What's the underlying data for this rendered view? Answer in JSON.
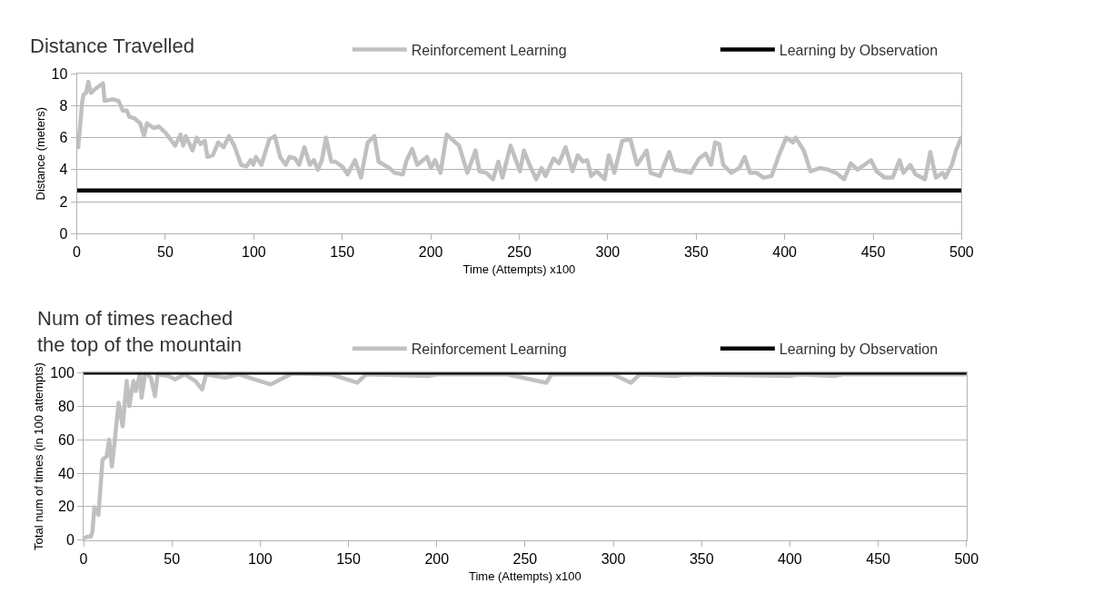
{
  "chart_data": [
    {
      "type": "line",
      "title": "Distance Travelled",
      "xlabel": "Time (Attempts) x100",
      "ylabel": "Distance (meters)",
      "xlim": [
        0,
        500
      ],
      "xticks": [
        0,
        50,
        100,
        150,
        200,
        250,
        300,
        350,
        400,
        450,
        500
      ],
      "ylim": [
        0,
        10
      ],
      "yticks": [
        0,
        2,
        4,
        6,
        8,
        10
      ],
      "grid": "y",
      "legend": "top right",
      "series": [
        {
          "name": "Reinforcement Learning",
          "color": "#c0c0c0",
          "x": [
            0.8,
            3,
            3.8,
            5.3,
            6.5,
            8,
            9.9,
            12.2,
            14.8,
            15.7,
            20.5,
            23.6,
            25.9,
            28.2,
            29.7,
            32.7,
            35.8,
            38,
            39.6,
            43.4,
            46.4,
            50.2,
            55.6,
            58.6,
            60.1,
            61.6,
            65.4,
            67.7,
            69.9,
            72.3,
            73.8,
            76.9,
            79.9,
            82.9,
            86,
            89,
            92.8,
            95.9,
            98.2,
            99.7,
            101.2,
            104.3,
            108.8,
            111.9,
            114.9,
            118,
            120.2,
            123.3,
            125.6,
            128.6,
            131.7,
            134,
            136.2,
            138.5,
            140.8,
            143.8,
            146.1,
            150,
            153,
            157.2,
            160.6,
            162.1,
            164.4,
            168.2,
            170.5,
            176.6,
            179.6,
            184.2,
            186.4,
            189.5,
            192.4,
            197.9,
            200.1,
            202.4,
            205.5,
            209,
            213,
            216,
            220.7,
            225.3,
            227.5,
            231.4,
            235.2,
            238.2,
            240.5,
            245.1,
            250.4,
            252.7,
            255.8,
            259.6,
            262.6,
            264.9,
            269.4,
            272.5,
            276.2,
            280.1,
            283.1,
            286.1,
            288.4,
            290.7,
            293.8,
            298.3,
            300.6,
            303.7,
            308.2,
            312.8,
            316.6,
            322,
            324.2,
            329.5,
            334.8,
            337.9,
            347,
            351.6,
            355.4,
            358.4,
            360.7,
            363,
            365.3,
            369.8,
            374.4,
            377.4,
            380.4,
            384.2,
            388,
            392.6,
            396.4,
            400.9,
            404.7,
            406.2,
            410.8,
            414.6,
            419.9,
            424.5,
            429,
            433.6,
            437.4,
            441.2,
            448.8,
            451.9,
            456.5,
            461,
            464.9,
            467.1,
            471,
            474,
            479.3,
            482.3,
            485.4,
            489.2,
            490.7,
            494.5,
            496.8,
            499.8
          ],
          "values": [
            5.4,
            8.2,
            8.7,
            8.8,
            9.5,
            8.8,
            9.0,
            9.2,
            9.4,
            8.3,
            8.4,
            8.3,
            7.7,
            7.7,
            7.3,
            7.2,
            6.9,
            6.1,
            6.9,
            6.6,
            6.7,
            6.3,
            5.5,
            6.2,
            5.5,
            6.1,
            5.2,
            6.0,
            5.6,
            5.8,
            4.8,
            4.9,
            5.7,
            5.4,
            6.1,
            5.5,
            4.3,
            4.2,
            4.6,
            4.3,
            4.8,
            4.3,
            5.9,
            6.1,
            4.8,
            4.3,
            4.8,
            4.7,
            4.3,
            5.4,
            4.3,
            4.6,
            4.0,
            4.6,
            6.0,
            4.5,
            4.5,
            4.2,
            3.7,
            4.6,
            3.5,
            4.4,
            5.7,
            6.1,
            4.5,
            4.1,
            3.8,
            3.7,
            4.6,
            5.3,
            4.3,
            4.8,
            4.1,
            4.6,
            3.8,
            6.2,
            5.8,
            5.5,
            3.8,
            5.2,
            3.9,
            3.8,
            3.4,
            4.5,
            3.5,
            5.5,
            3.9,
            5.2,
            4.3,
            3.4,
            4.1,
            3.6,
            4.7,
            4.4,
            5.4,
            3.9,
            4.9,
            4.5,
            4.6,
            3.6,
            3.9,
            3.4,
            4.9,
            3.8,
            5.8,
            5.9,
            4.3,
            5.2,
            3.8,
            3.6,
            5.1,
            4.0,
            3.8,
            4.7,
            5.0,
            4.3,
            5.7,
            5.6,
            4.3,
            3.8,
            4.1,
            4.8,
            3.8,
            3.8,
            3.5,
            3.6,
            4.8,
            6.0,
            5.7,
            6.0,
            5.2,
            3.9,
            4.1,
            4.0,
            3.8,
            3.4,
            4.4,
            4.0,
            4.6,
            3.9,
            3.5,
            3.5,
            4.6,
            3.8,
            4.3,
            3.7,
            3.4,
            5.1,
            3.5,
            3.8,
            3.5,
            4.3,
            5.2,
            6.0
          ]
        },
        {
          "name": "Learning by Observation",
          "color": "#000000",
          "x": [
            0,
            500
          ],
          "values": [
            2.7,
            2.7
          ]
        }
      ]
    },
    {
      "type": "line",
      "title": "Num of times reached\nthe top of the mountain",
      "xlabel": "Time (Attempts) x100",
      "ylabel": "Total num of times (in 100 attempts)",
      "xlim": [
        0,
        500
      ],
      "xticks": [
        0,
        50,
        100,
        150,
        200,
        250,
        300,
        350,
        400,
        450,
        500
      ],
      "ylim": [
        0,
        100
      ],
      "yticks": [
        0,
        20,
        40,
        60,
        80,
        100
      ],
      "grid": "y",
      "legend": "top right",
      "series": [
        {
          "name": "Reinforcement Learning",
          "color": "#c0c0c0",
          "x": [
            0,
            2,
            4,
            5,
            6.1,
            8.4,
            10.7,
            13,
            14.5,
            16,
            17.5,
            19.8,
            22.1,
            24.4,
            25.9,
            28.2,
            29.7,
            32,
            32.8,
            35,
            38.1,
            40.4,
            41.9,
            48,
            51.8,
            57.2,
            63.3,
            67.1,
            69.4,
            80,
            87.7,
            106,
            118,
            140,
            155,
            160,
            195,
            200,
            240,
            262,
            265,
            300,
            310,
            315,
            335,
            340,
            400,
            405,
            425,
            430,
            500
          ],
          "values": [
            1,
            2,
            2,
            5,
            19.7,
            15,
            48,
            50,
            60,
            44,
            58,
            82,
            68,
            95,
            80,
            95,
            89,
            100,
            85,
            100,
            97,
            86,
            99,
            98,
            96,
            99,
            95,
            90,
            99,
            97,
            99,
            93,
            99.5,
            99,
            94,
            99,
            98,
            99,
            99,
            94,
            99,
            99,
            94,
            99,
            98,
            99,
            98,
            99,
            98,
            99,
            99
          ]
        },
        {
          "name": "Learning by Observation",
          "color": "#000000",
          "x": [
            0,
            500
          ],
          "values": [
            100,
            100
          ]
        }
      ]
    }
  ]
}
